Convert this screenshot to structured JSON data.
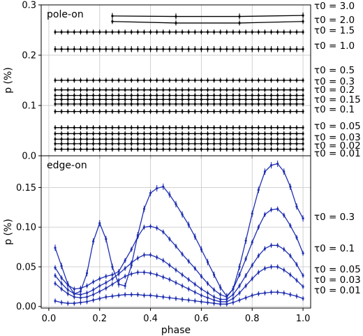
{
  "chart_data": [
    {
      "type": "line",
      "panel": "top",
      "panel_label": "pole-on",
      "ylabel": "p (%)",
      "xlim": [
        -0.03,
        1.03
      ],
      "ylim": [
        0.0,
        0.3
      ],
      "yticks": [
        "0.0",
        "0.1",
        "0.2",
        "0.3"
      ],
      "grid": true,
      "color": "#000000",
      "series": [
        {
          "label": "τ0 = 3.0",
          "x": [
            0.25,
            0.5,
            0.75,
            1.0
          ],
          "y": [
            0.278,
            0.277,
            0.277,
            0.279
          ],
          "err": 0.006
        },
        {
          "label": "τ0 = 2.0",
          "x": [
            0.25,
            0.5,
            0.75,
            1.0
          ],
          "y": [
            0.267,
            0.264,
            0.264,
            0.267
          ],
          "err": 0.005
        },
        {
          "label": "τ0 = 1.5",
          "step": 0.025,
          "x0": 0.025,
          "x1": 1.0,
          "y": 0.246,
          "err": 0.004
        },
        {
          "label": "τ0 = 1.0",
          "step": 0.025,
          "x0": 0.025,
          "x1": 1.0,
          "y": 0.212,
          "err": 0.006
        },
        {
          "label": "τ0 = 0.5",
          "step": 0.025,
          "x0": 0.025,
          "x1": 1.0,
          "y": 0.15,
          "err": 0.003
        },
        {
          "label": "τ0 = 0.3",
          "step": 0.025,
          "x0": 0.025,
          "x1": 1.0,
          "y": 0.131,
          "err": 0.002
        },
        {
          "label": "τ0 = 0.2",
          "step": 0.025,
          "x0": 0.025,
          "x1": 1.0,
          "y": 0.12,
          "err": 0.002
        },
        {
          "label": "τ0 = 0.15",
          "step": 0.025,
          "x0": 0.025,
          "x1": 1.0,
          "y": 0.112,
          "err": 0.002
        },
        {
          "label": "τ0 = 0.1",
          "step": 0.025,
          "x0": 0.025,
          "x1": 1.0,
          "y": 0.103,
          "err": 0.002
        },
        {
          "label": "",
          "step": 0.025,
          "x0": 0.025,
          "x1": 1.0,
          "y": 0.088,
          "err": 0.002
        },
        {
          "label": "τ0 = 0.05",
          "step": 0.025,
          "x0": 0.025,
          "x1": 1.0,
          "y": 0.056,
          "err": 0.001
        },
        {
          "label": "τ0 = 0.03",
          "step": 0.025,
          "x0": 0.025,
          "x1": 1.0,
          "y": 0.044,
          "err": 0.001
        },
        {
          "label": "τ0 = 0.02",
          "step": 0.025,
          "x0": 0.025,
          "x1": 1.0,
          "y": 0.033,
          "err": 0.001
        },
        {
          "label": "τ0 = 0.01",
          "step": 0.025,
          "x0": 0.025,
          "x1": 1.0,
          "y": 0.024,
          "err": 0.001
        },
        {
          "label": "",
          "step": 0.025,
          "x0": 0.025,
          "x1": 1.0,
          "y": 0.013,
          "err": 0.001
        }
      ]
    },
    {
      "type": "line",
      "panel": "bottom",
      "panel_label": "edge-on",
      "xlabel": "phase",
      "ylabel": "p (%)",
      "xlim": [
        -0.03,
        1.03
      ],
      "ylim": [
        -0.002,
        0.19
      ],
      "xticks": [
        "0.0",
        "0.2",
        "0.4",
        "0.6",
        "0.8",
        "1.0"
      ],
      "yticks": [
        "0.00",
        "0.05",
        "0.10",
        "0.15"
      ],
      "grid": true,
      "color": "#1f2fb0",
      "series": [
        {
          "label": "τ0 = 0.3",
          "x": [
            0.025,
            0.05,
            0.075,
            0.1,
            0.125,
            0.15,
            0.175,
            0.2,
            0.225,
            0.25,
            0.275,
            0.3,
            0.325,
            0.35,
            0.375,
            0.4,
            0.425,
            0.45,
            0.475,
            0.5,
            0.525,
            0.55,
            0.575,
            0.6,
            0.625,
            0.65,
            0.675,
            0.7,
            0.725,
            0.75,
            0.775,
            0.8,
            0.825,
            0.85,
            0.875,
            0.9,
            0.925,
            0.95,
            0.975,
            1.0
          ],
          "y": [
            0.074,
            0.051,
            0.028,
            0.016,
            0.019,
            0.042,
            0.082,
            0.105,
            0.085,
            0.05,
            0.028,
            0.026,
            0.052,
            0.09,
            0.123,
            0.143,
            0.149,
            0.151,
            0.141,
            0.129,
            0.116,
            0.103,
            0.088,
            0.072,
            0.056,
            0.04,
            0.024,
            0.013,
            0.022,
            0.05,
            0.083,
            0.117,
            0.147,
            0.17,
            0.178,
            0.18,
            0.17,
            0.151,
            0.126,
            0.111
          ],
          "err": 0.004
        },
        {
          "label": "τ0 = 0.1",
          "x": [
            0.025,
            0.05,
            0.075,
            0.1,
            0.125,
            0.15,
            0.175,
            0.2,
            0.225,
            0.25,
            0.275,
            0.3,
            0.325,
            0.35,
            0.375,
            0.4,
            0.425,
            0.45,
            0.475,
            0.5,
            0.525,
            0.55,
            0.575,
            0.6,
            0.625,
            0.65,
            0.675,
            0.7,
            0.725,
            0.75,
            0.775,
            0.8,
            0.825,
            0.85,
            0.875,
            0.9,
            0.925,
            0.95,
            0.975,
            1.0
          ],
          "y": [
            0.049,
            0.036,
            0.027,
            0.022,
            0.023,
            0.026,
            0.031,
            0.035,
            0.038,
            0.04,
            0.044,
            0.058,
            0.072,
            0.088,
            0.1,
            0.101,
            0.099,
            0.094,
            0.085,
            0.076,
            0.066,
            0.057,
            0.048,
            0.038,
            0.029,
            0.021,
            0.015,
            0.012,
            0.022,
            0.04,
            0.06,
            0.081,
            0.1,
            0.116,
            0.122,
            0.123,
            0.115,
            0.102,
            0.087,
            0.067
          ],
          "err": 0.003
        },
        {
          "label": "τ0 = 0.05",
          "x": [
            0.025,
            0.05,
            0.075,
            0.1,
            0.125,
            0.15,
            0.175,
            0.2,
            0.225,
            0.25,
            0.275,
            0.3,
            0.325,
            0.35,
            0.375,
            0.4,
            0.425,
            0.45,
            0.475,
            0.5,
            0.525,
            0.55,
            0.575,
            0.6,
            0.625,
            0.65,
            0.675,
            0.7,
            0.725,
            0.75,
            0.775,
            0.8,
            0.825,
            0.85,
            0.875,
            0.9,
            0.925,
            0.95,
            0.975,
            1.0
          ],
          "y": [
            0.039,
            0.029,
            0.021,
            0.016,
            0.015,
            0.017,
            0.021,
            0.026,
            0.03,
            0.035,
            0.041,
            0.048,
            0.055,
            0.061,
            0.065,
            0.065,
            0.062,
            0.058,
            0.052,
            0.046,
            0.04,
            0.034,
            0.028,
            0.022,
            0.017,
            0.012,
            0.009,
            0.009,
            0.015,
            0.026,
            0.039,
            0.052,
            0.064,
            0.073,
            0.077,
            0.077,
            0.072,
            0.064,
            0.053,
            0.039
          ],
          "err": 0.002
        },
        {
          "label": "τ0 = 0.03",
          "x": [
            0.025,
            0.05,
            0.075,
            0.1,
            0.125,
            0.15,
            0.175,
            0.2,
            0.225,
            0.25,
            0.275,
            0.3,
            0.325,
            0.35,
            0.375,
            0.4,
            0.425,
            0.45,
            0.475,
            0.5,
            0.525,
            0.55,
            0.575,
            0.6,
            0.625,
            0.65,
            0.675,
            0.7,
            0.725,
            0.75,
            0.775,
            0.8,
            0.825,
            0.85,
            0.875,
            0.9,
            0.925,
            0.95,
            0.975,
            1.0
          ],
          "y": [
            0.029,
            0.022,
            0.016,
            0.012,
            0.011,
            0.012,
            0.015,
            0.019,
            0.023,
            0.028,
            0.033,
            0.038,
            0.041,
            0.043,
            0.043,
            0.042,
            0.04,
            0.037,
            0.034,
            0.03,
            0.026,
            0.022,
            0.018,
            0.014,
            0.011,
            0.008,
            0.006,
            0.006,
            0.01,
            0.017,
            0.026,
            0.035,
            0.043,
            0.048,
            0.05,
            0.05,
            0.046,
            0.04,
            0.033,
            0.025
          ],
          "err": 0.002
        },
        {
          "label": "τ0 = 0.01",
          "x": [
            0.025,
            0.05,
            0.075,
            0.1,
            0.125,
            0.15,
            0.175,
            0.2,
            0.225,
            0.25,
            0.275,
            0.3,
            0.325,
            0.35,
            0.375,
            0.4,
            0.425,
            0.45,
            0.475,
            0.5,
            0.525,
            0.55,
            0.575,
            0.6,
            0.625,
            0.65,
            0.675,
            0.7,
            0.725,
            0.75,
            0.775,
            0.8,
            0.825,
            0.85,
            0.875,
            0.9,
            0.925,
            0.95,
            0.975,
            1.0
          ],
          "y": [
            0.007,
            0.005,
            0.004,
            0.004,
            0.005,
            0.006,
            0.008,
            0.01,
            0.012,
            0.013,
            0.014,
            0.015,
            0.015,
            0.015,
            0.014,
            0.014,
            0.013,
            0.012,
            0.011,
            0.01,
            0.009,
            0.008,
            0.007,
            0.006,
            0.005,
            0.004,
            0.003,
            0.003,
            0.005,
            0.008,
            0.011,
            0.014,
            0.016,
            0.017,
            0.018,
            0.018,
            0.017,
            0.015,
            0.013,
            0.01
          ],
          "err": 0.001
        }
      ]
    }
  ]
}
